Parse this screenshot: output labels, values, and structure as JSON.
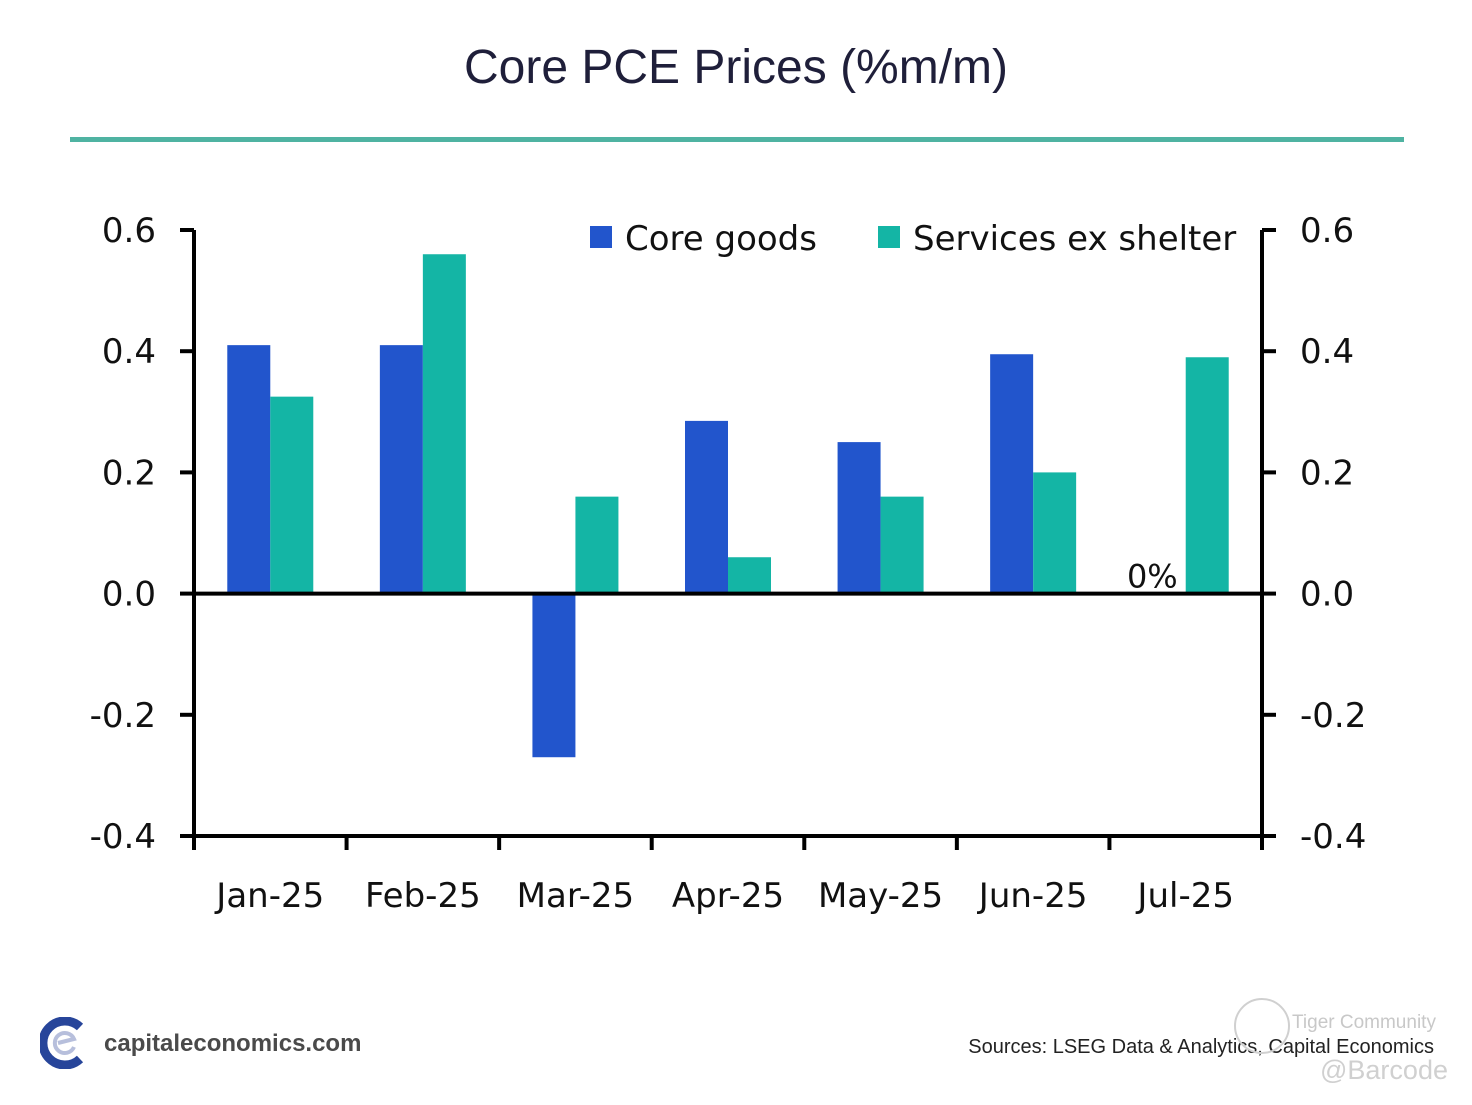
{
  "header": {
    "title": "Core PCE Prices (%m/m)",
    "rule_color": "#4fb3a2"
  },
  "chart_data": {
    "type": "bar",
    "title": "Core PCE Prices (%m/m)",
    "xlabel": "",
    "ylabel": "",
    "categories": [
      "Jan-25",
      "Feb-25",
      "Mar-25",
      "Apr-25",
      "May-25",
      "Jun-25",
      "Jul-25"
    ],
    "series": [
      {
        "name": "Core goods",
        "color": "#2255cc",
        "values": [
          0.41,
          0.41,
          -0.27,
          0.285,
          0.25,
          0.395,
          0.0
        ]
      },
      {
        "name": "Services ex shelter",
        "color": "#14b5a5",
        "values": [
          0.325,
          0.56,
          0.16,
          0.06,
          0.16,
          0.2,
          0.39
        ]
      }
    ],
    "ylim": [
      -0.4,
      0.6
    ],
    "yticks": [
      0.6,
      0.4,
      0.2,
      0.0,
      -0.2,
      -0.4
    ],
    "ytick_labels": [
      "0.6",
      "0.4",
      "0.2",
      "0.0",
      "-0.2",
      "-0.4"
    ],
    "secondary_y_axis": true,
    "grid": false,
    "legend": "top-right",
    "annotations": [
      {
        "category": "Jul-25",
        "series": "Core goods",
        "text": "0%"
      }
    ]
  },
  "footer": {
    "brand": "capitaleconomics.com",
    "sources": "Sources: LSEG Data & Analytics, Capital Economics",
    "watermark_line1": "Tiger Community",
    "watermark_line2": "@Barcode"
  }
}
